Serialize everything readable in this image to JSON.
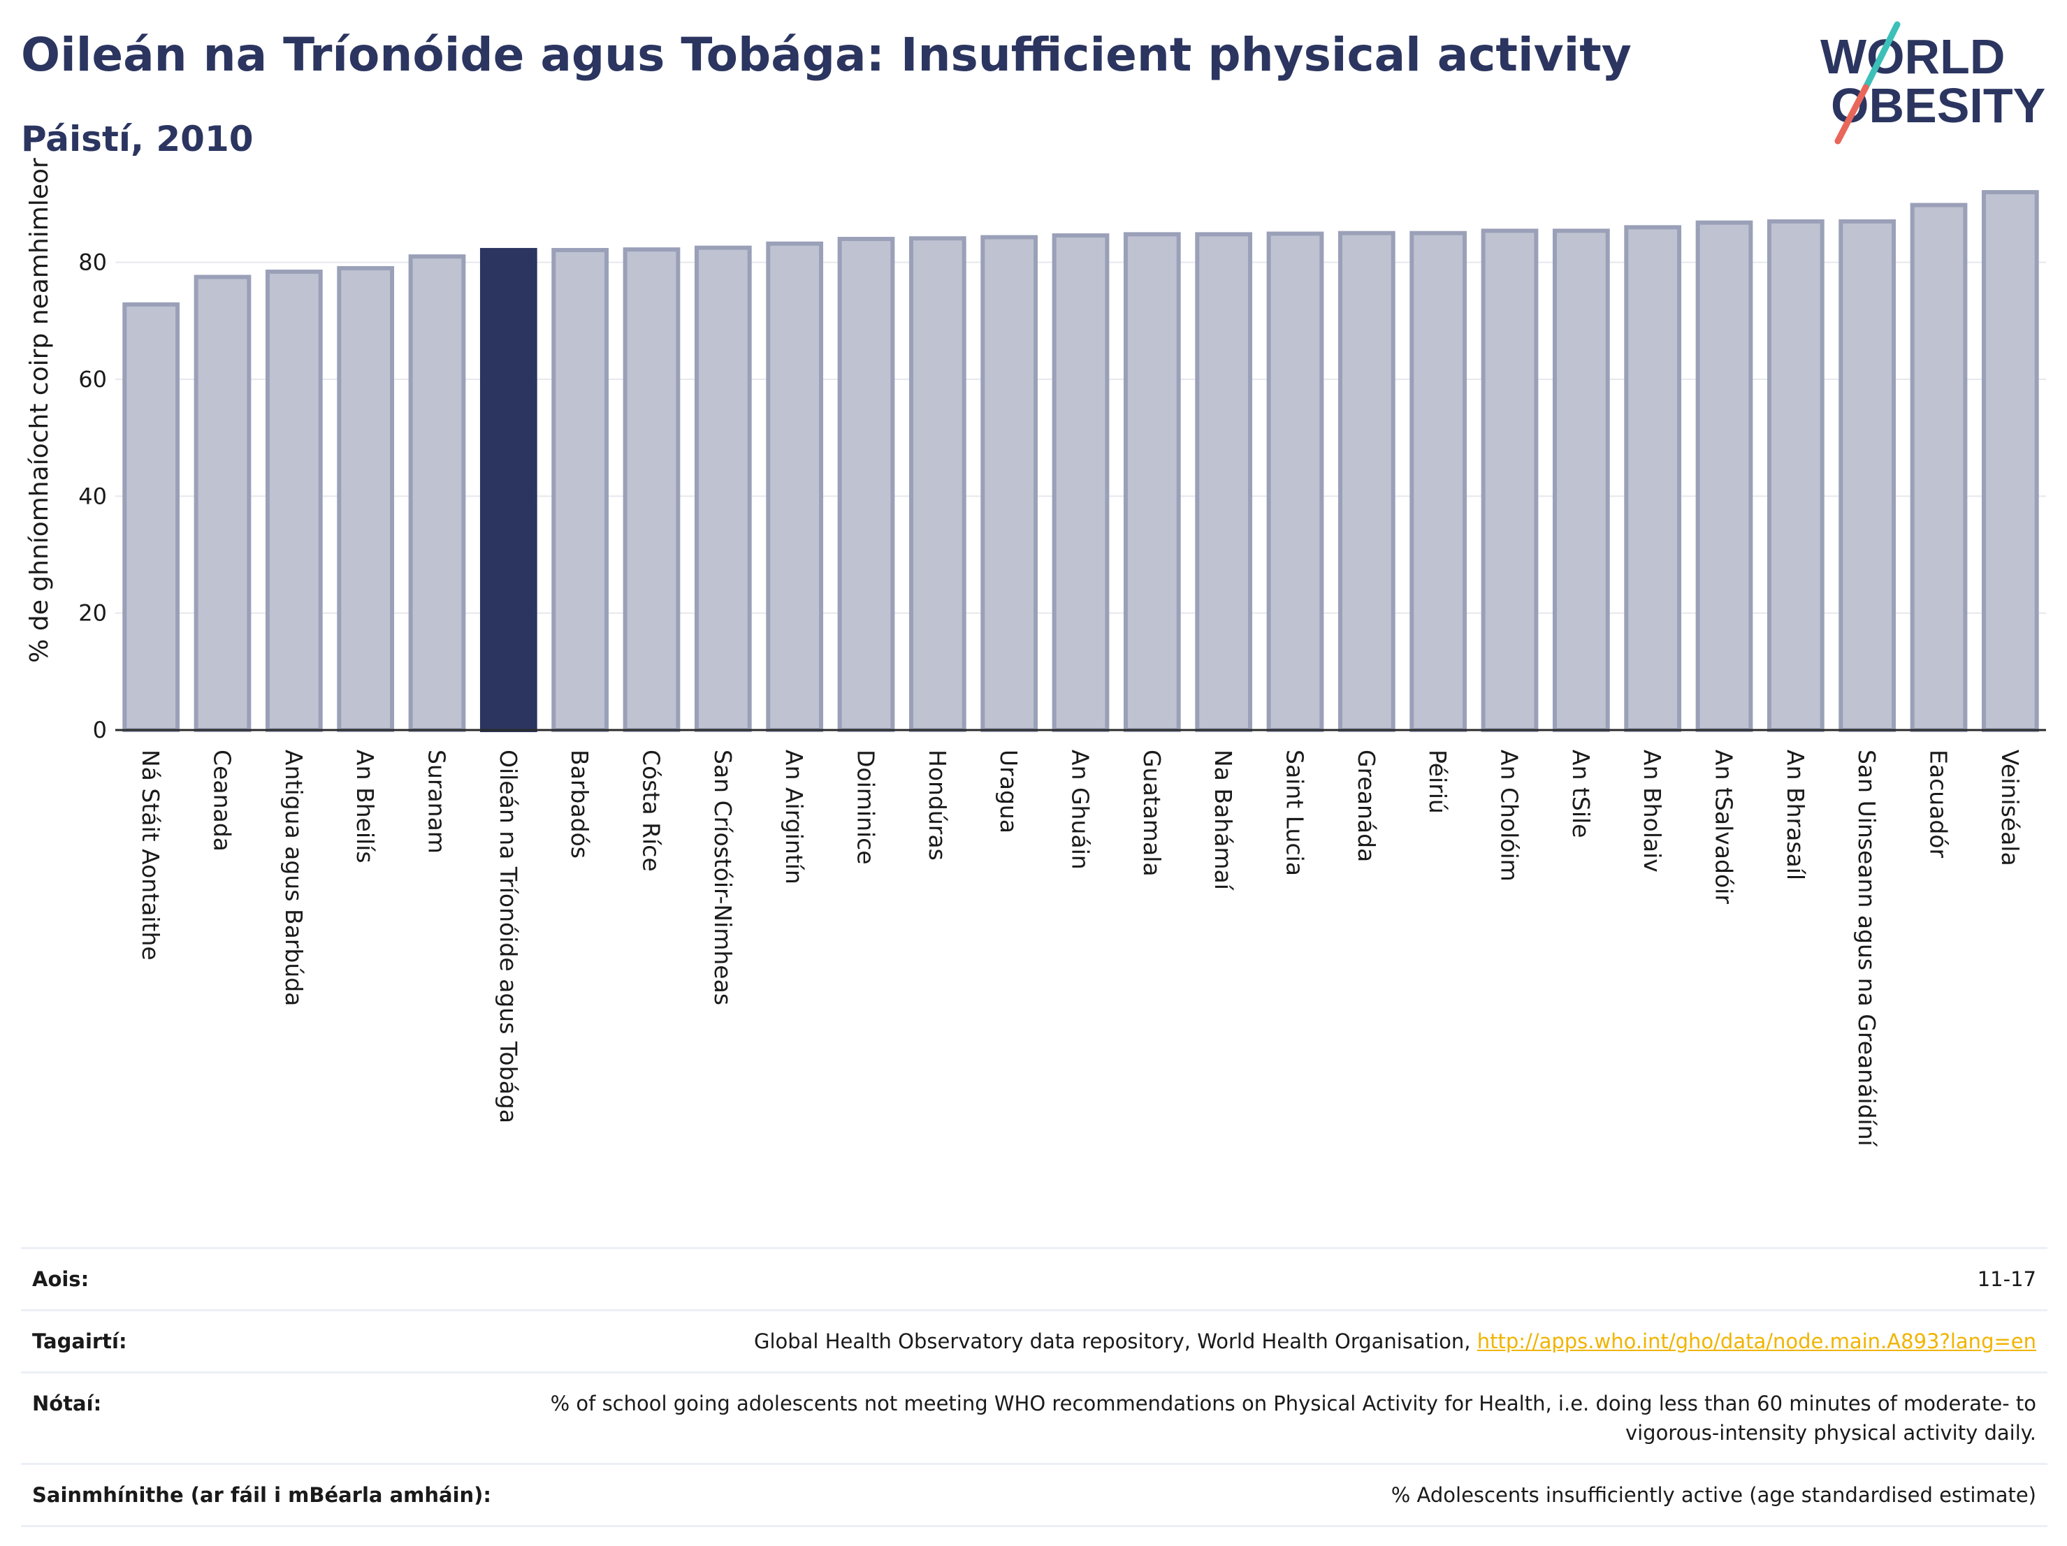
{
  "header": {
    "title": "Oileán na Tríonóide agus Tobága: Insufficient physical activity",
    "subtitle": "Páistí, 2010"
  },
  "logo": {
    "line1": "WORLD",
    "line2": "OBESITY",
    "colors": {
      "text": "#2b3560",
      "slash_top": "#3cc0b8",
      "slash_bottom": "#e8675a"
    }
  },
  "colors": {
    "highlight": "#2b3560",
    "bar_fill": "#bfc3d1",
    "bar_stroke": "#9aa0b8",
    "grid": "#e6e8ee",
    "axis": "#2a2a2a",
    "link": "#f0b400"
  },
  "chart_data": {
    "type": "bar",
    "ylabel": "% de ghníomhaíocht coirp neamhimleor",
    "ylim": [
      0,
      95
    ],
    "yticks": [
      0,
      20,
      40,
      60,
      80
    ],
    "grid": true,
    "highlight_index": 5,
    "categories": [
      "Ná Stáit Aontaithe",
      "Ceanada",
      "Antigua agus Barbúda",
      "An Bheilís",
      "Suranam",
      "Oileán na Tríonóide agus Tobága",
      "Barbadós",
      "Cósta Ríce",
      "San Críostóir-Nimheas",
      "An Airgintín",
      "Doiminice",
      "Hondúras",
      "Uragua",
      "An Ghuáin",
      "Guatamala",
      "Na Bahámaí",
      "Saint Lucia",
      "Greanáda",
      "Péiriú",
      "An Cholóim",
      "An tSile",
      "An Bholaiv",
      "An tSalvadóir",
      "An Bhrasaíl",
      "San Uinseann agus na Greanáidíní",
      "Eacuadór",
      "Veiniséala"
    ],
    "values": [
      72.8,
      77.5,
      78.4,
      79.0,
      81.0,
      82.1,
      82.1,
      82.2,
      82.5,
      83.2,
      84.0,
      84.1,
      84.3,
      84.6,
      84.8,
      84.8,
      84.9,
      85.0,
      85.0,
      85.4,
      85.4,
      86.0,
      86.8,
      87.0,
      87.0,
      89.8,
      92.0
    ]
  },
  "info": [
    {
      "key": "Aois:",
      "value": "11-17"
    },
    {
      "key": "Tagairtí:",
      "value": "Global Health Observatory data repository, World Health Organisation, ",
      "link": "http://apps.who.int/gho/data/node.main.A893?lang=en"
    },
    {
      "key": "Nótaí:",
      "value": "% of school going adolescents not meeting WHO recommendations on Physical Activity for Health, i.e. doing less than 60 minutes of moderate- to vigorous-intensity physical activity daily."
    },
    {
      "key": "Sainmhínithe (ar fáil i mBéarla amháin):",
      "value": "% Adolescents insufficiently active (age standardised estimate)"
    }
  ]
}
